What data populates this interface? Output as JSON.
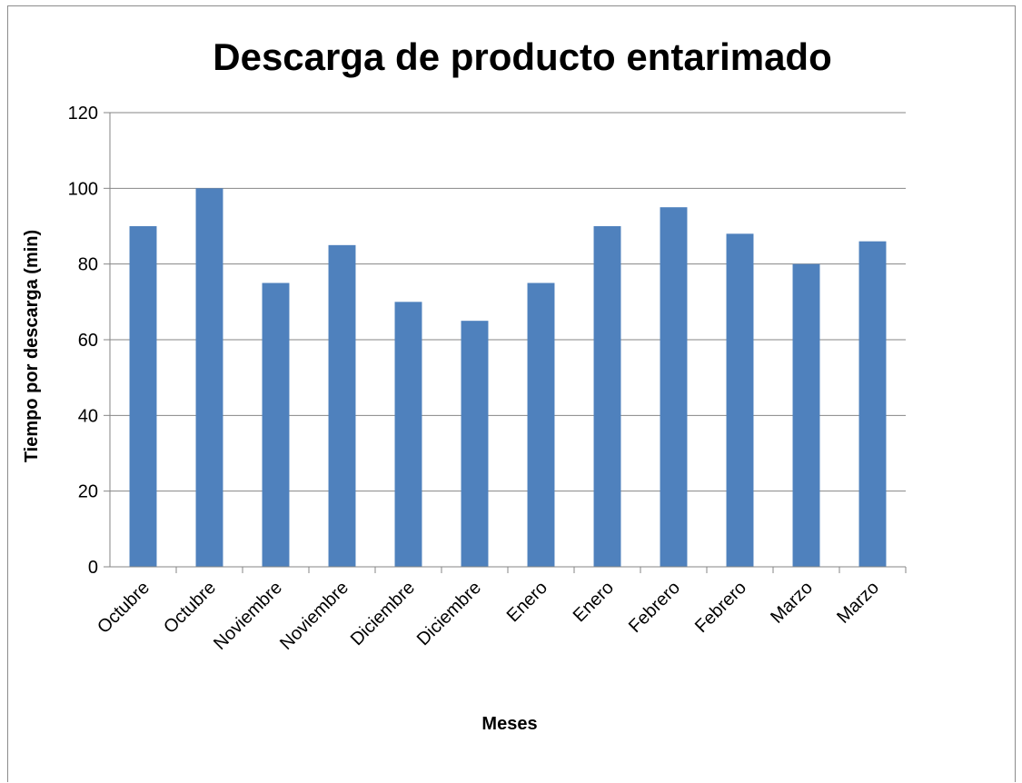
{
  "chart_data": {
    "type": "bar",
    "title": "Descarga de producto entarimado",
    "xlabel": "Meses",
    "ylabel": "Tiempo por descarga (min)",
    "categories": [
      "Octubre",
      "Octubre",
      "Noviembre",
      "Noviembre",
      "Diciembre",
      "Diciembre",
      "Enero",
      "Enero",
      "Febrero",
      "Febrero",
      "Marzo",
      "Marzo"
    ],
    "values": [
      90,
      100,
      75,
      85,
      70,
      65,
      75,
      90,
      95,
      88,
      80,
      86
    ],
    "ylim": [
      0,
      120
    ],
    "yticks": [
      0,
      20,
      40,
      60,
      80,
      100,
      120
    ],
    "grid": true,
    "legend": "none",
    "colors": {
      "bar": "#4f81bd",
      "grid": "#868686",
      "axis": "#868686"
    }
  }
}
